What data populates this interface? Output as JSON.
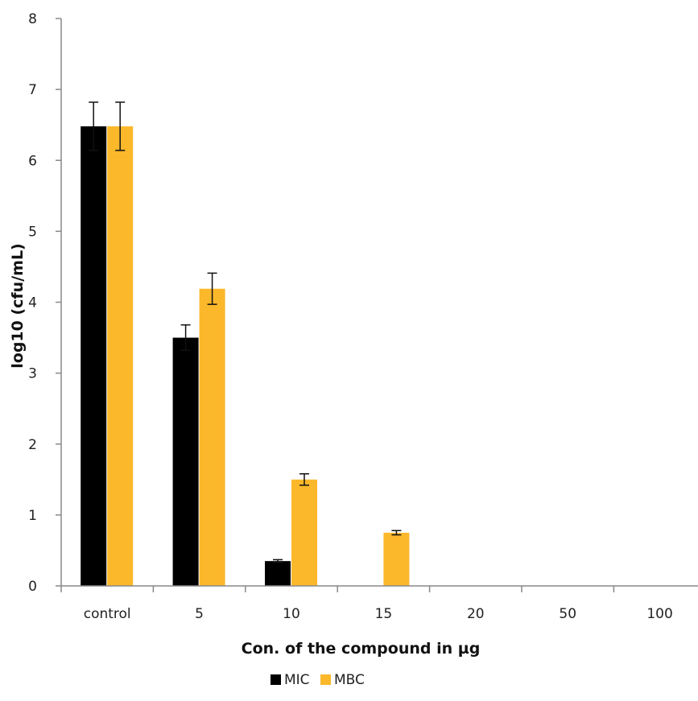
{
  "chart_data": {
    "type": "bar",
    "title": "",
    "xlabel": "Con. of the compound in µg",
    "ylabel": "log10 (cfu/mL)",
    "categories": [
      "control",
      "5",
      "10",
      "15",
      "20",
      "50",
      "100"
    ],
    "ylim": [
      0,
      8
    ],
    "yticks": [
      "0",
      "1",
      "2",
      "3",
      "4",
      "5",
      "6",
      "7",
      "8"
    ],
    "grid": false,
    "legend_position": "bottom",
    "series": [
      {
        "name": "MIC",
        "color": "#000000",
        "values": [
          6.48,
          3.5,
          0.35,
          0,
          0,
          0,
          0
        ],
        "errors": [
          0.34,
          0.18,
          0.02,
          0,
          0,
          0,
          0
        ]
      },
      {
        "name": "MBC",
        "color": "#FBB82B",
        "values": [
          6.48,
          4.19,
          1.5,
          0.75,
          0,
          0,
          0
        ],
        "errors": [
          0.34,
          0.22,
          0.08,
          0.03,
          0,
          0,
          0
        ]
      }
    ]
  }
}
